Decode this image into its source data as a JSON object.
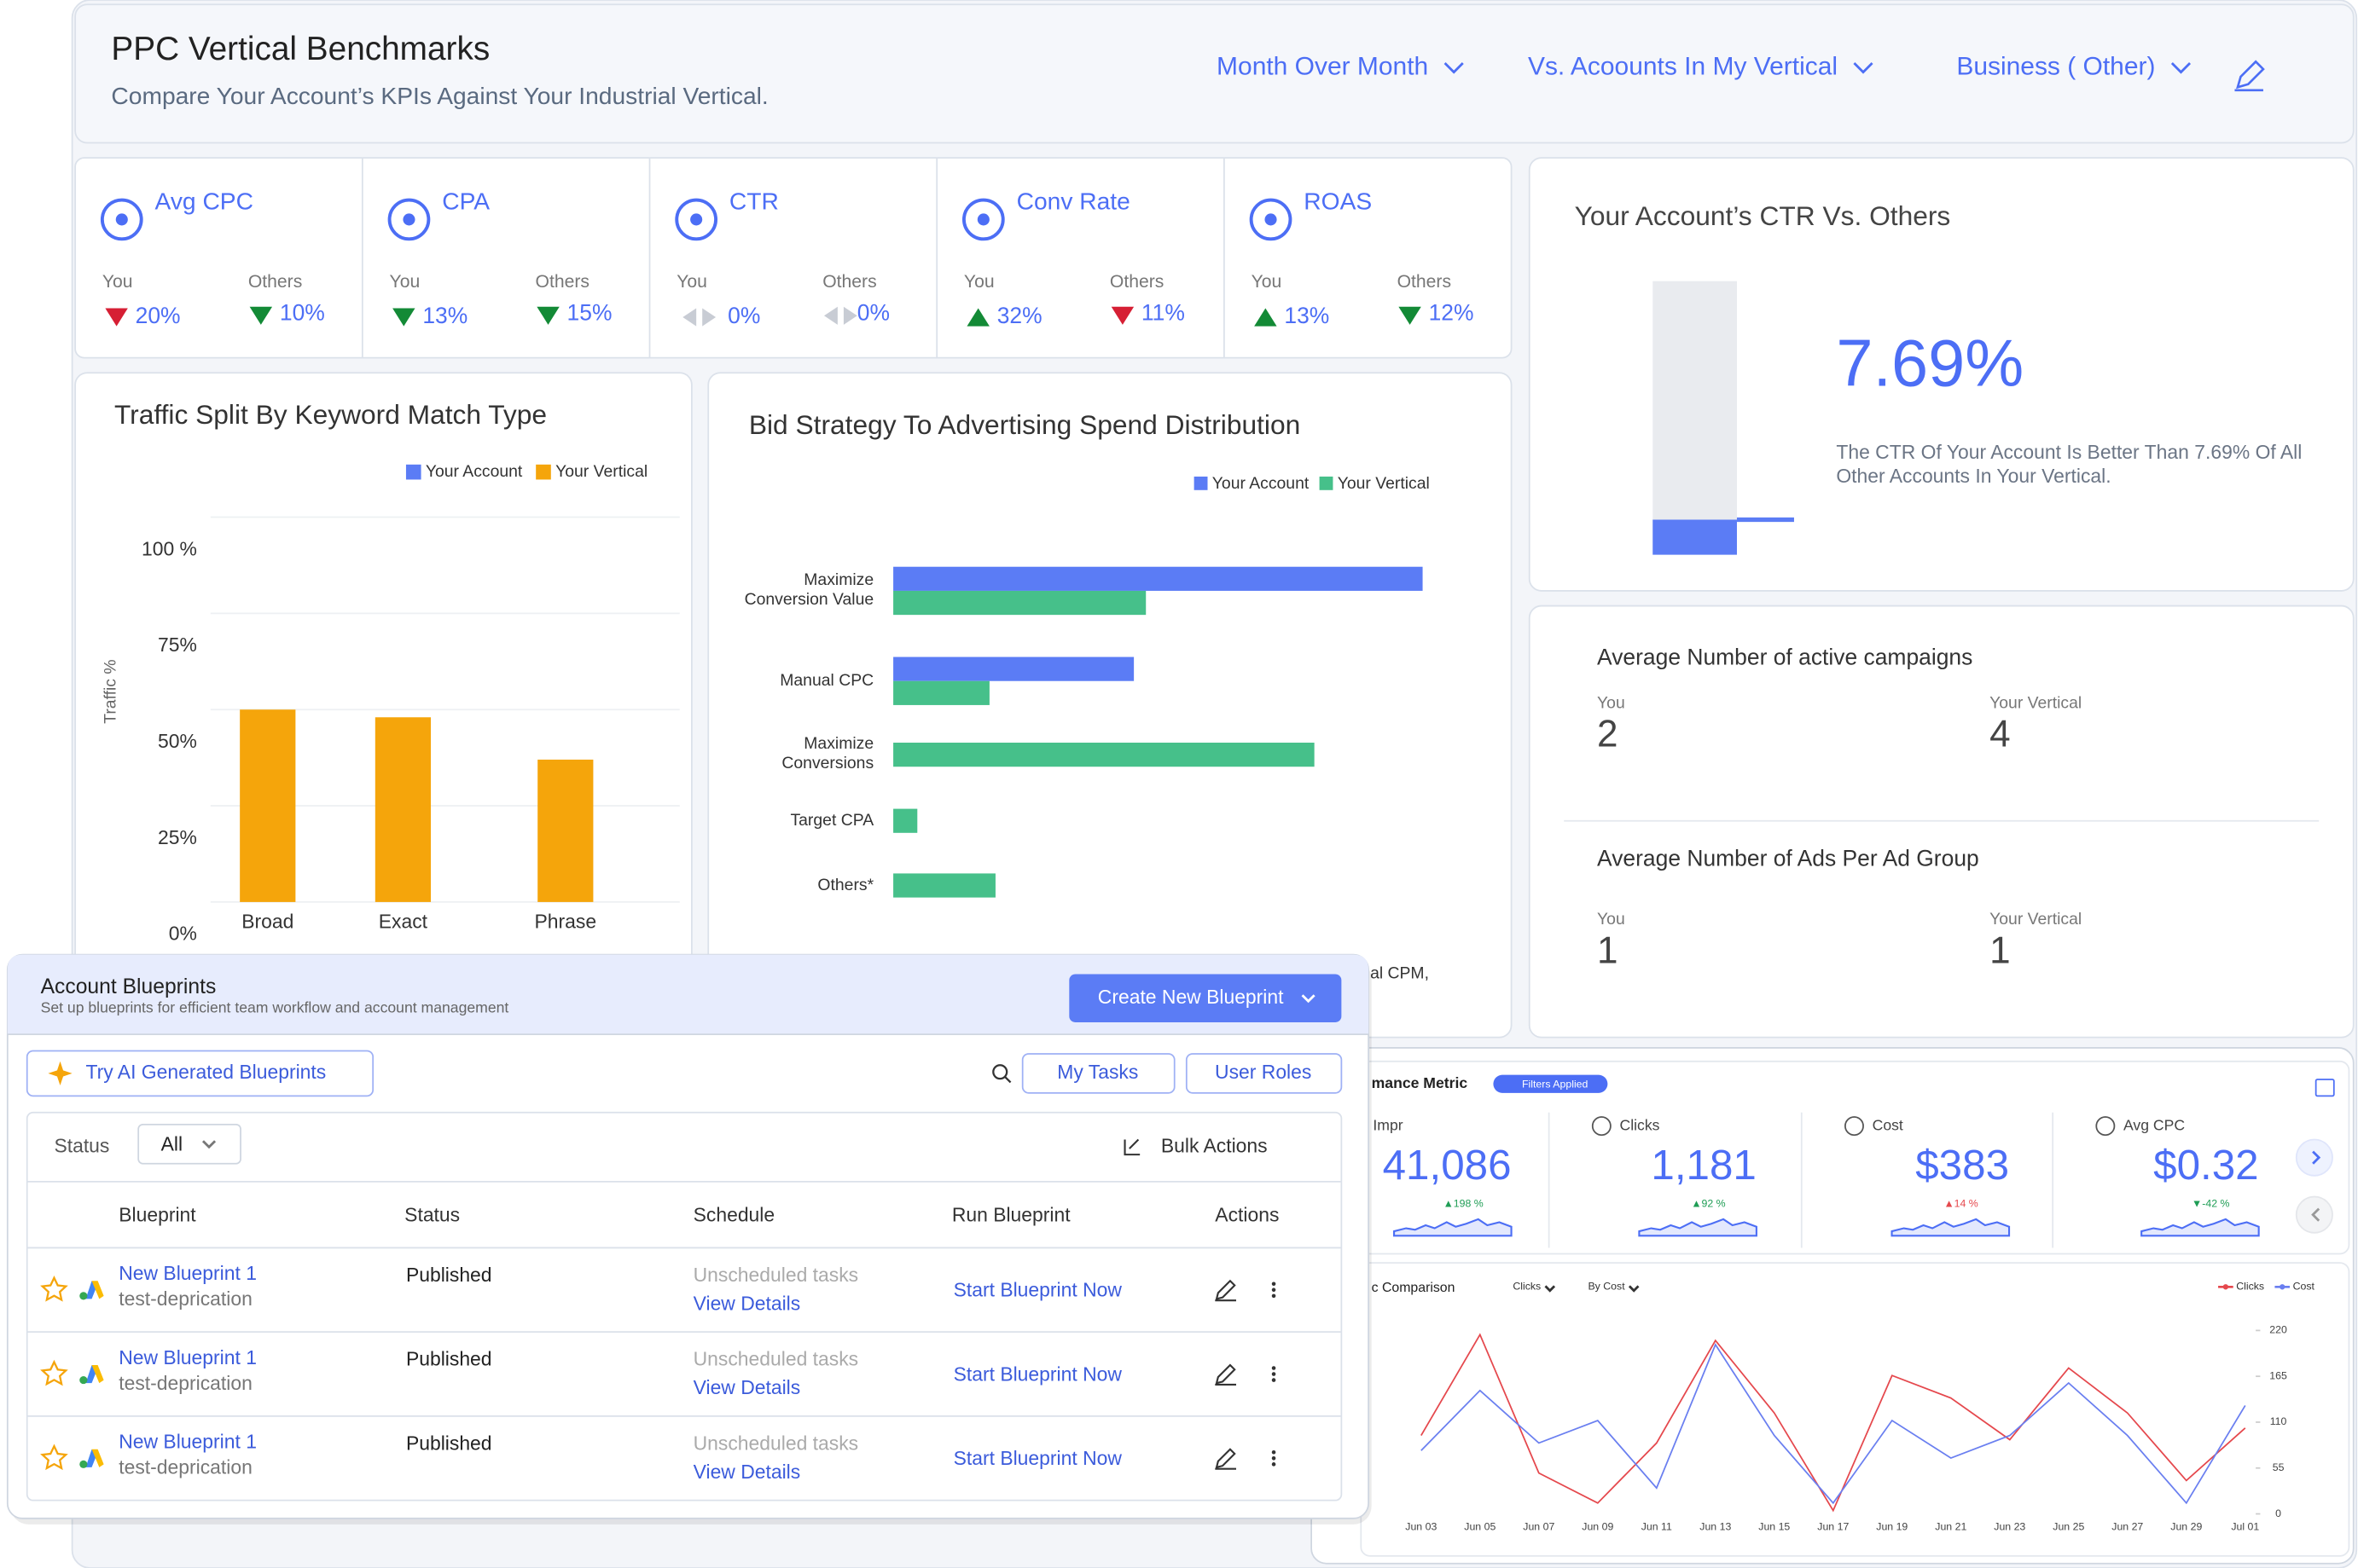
{
  "header": {
    "title": "PPC Vertical Benchmarks",
    "subtitle": "Compare Your Account’s KPIs Against Your Industrial Vertical.",
    "filters": [
      "Month Over Month",
      "Vs. Acoounts In My Vertical",
      "Business ( Other)"
    ]
  },
  "kpis": {
    "you_label": "You",
    "others_label": "Others",
    "items": [
      {
        "label": "Avg CPC",
        "you": "20%",
        "you_trend": "down",
        "you_color": "#d61f34",
        "others": "10%",
        "others_trend": "down",
        "others_color": "#138a36"
      },
      {
        "label": "CPA",
        "you": "13%",
        "you_trend": "down",
        "you_color": "#138a36",
        "others": "15%",
        "others_trend": "down",
        "others_color": "#138a36"
      },
      {
        "label": "CTR",
        "you": "0%",
        "you_trend": "flat",
        "you_color": "#c8ccd4",
        "others": "0%",
        "others_trend": "flat",
        "others_color": "#c8ccd4"
      },
      {
        "label": "Conv Rate",
        "you": "32%",
        "you_trend": "up",
        "you_color": "#138a36",
        "others": "11%",
        "others_trend": "down",
        "others_color": "#d61f34"
      },
      {
        "label": "ROAS",
        "you": "13%",
        "you_trend": "up",
        "you_color": "#138a36",
        "others": "12%",
        "others_trend": "down",
        "others_color": "#138a36"
      }
    ]
  },
  "traffic_chart": {
    "type": "bar",
    "title": "Traffic Split By Keyword Match Type",
    "y_label": "Traffic %",
    "categories": [
      "Broad",
      "Exact",
      "Phrase"
    ],
    "series": [
      {
        "name": "Your Account",
        "color": "#5b7cf5",
        "values": [
          null,
          null,
          null
        ]
      },
      {
        "name": "Your Vertical",
        "color": "#f5a50b",
        "values": [
          50,
          48,
          37
        ]
      }
    ],
    "ylim": [
      0,
      100
    ],
    "yticks": [
      {
        "value": 0,
        "label": "0%"
      },
      {
        "value": 25,
        "label": "25%"
      },
      {
        "value": 50,
        "label": "50%"
      },
      {
        "value": 75,
        "label": "75%"
      },
      {
        "value": 100,
        "label": "100 %"
      }
    ],
    "grid": true
  },
  "bid_chart": {
    "type": "hbar",
    "title": "Bid Strategy To Advertising Spend Distribution",
    "categories": [
      "Maximize Conversion Value",
      "Manual CPC",
      "Maximize Conversions",
      "Target CPA",
      "Others*"
    ],
    "series": [
      {
        "name": "Your Account",
        "color": "#5b7cf5",
        "values": [
          88,
          40,
          null,
          null,
          null
        ]
      },
      {
        "name": "Your Vertical",
        "color": "#46c08a",
        "values": [
          42,
          16,
          70,
          4,
          17
        ]
      }
    ],
    "xlim": [
      0,
      100
    ],
    "note": "ual CPM,"
  },
  "ctr_panel": {
    "title": "Your Account’s CTR Vs. Others",
    "value": 7.69,
    "value_label": "7.69%",
    "description": "The CTR Of Your Account Is Better Than 7.69% Of All Other Accounts In Your Vertical.",
    "ylim": [
      0,
      60
    ],
    "track_color": "#e9ebef",
    "color": "#5b7cf5"
  },
  "campaign_stats": {
    "you_label": "You",
    "vertical_label": "Your Vertical",
    "items": [
      {
        "title": "Average Number of active campaigns",
        "you": 2,
        "vertical": 4
      },
      {
        "title": "Average Number of Ads Per Ad Group",
        "you": 1,
        "vertical": 1
      }
    ]
  },
  "performance": {
    "title": "mance Metric",
    "badge": "Filters Applied",
    "metrics": [
      {
        "label": "Impr",
        "value": "41,086",
        "change": "▲198 %",
        "color": "#1f9d55"
      },
      {
        "label": "Clicks",
        "value": "1,181",
        "change": "▲92 %",
        "color": "#1f9d55"
      },
      {
        "label": "Cost",
        "value": "$383",
        "change": "▲14 %",
        "color": "#e5484d"
      },
      {
        "label": "Avg CPC",
        "value": "$0.32",
        "change": "▼-42 %",
        "color": "#1f9d55"
      }
    ]
  },
  "comparison_chart": {
    "type": "line",
    "title": "c Comparison",
    "controls": [
      "Clicks",
      "By Cost"
    ],
    "x": [
      "Jun 03",
      "Jun 05",
      "Jun 07",
      "Jun 09",
      "Jun 11",
      "Jun 13",
      "Jun 15",
      "Jun 17",
      "Jun 19",
      "Jun 21",
      "Jun 23",
      "Jun 25",
      "Jun 27",
      "Jun 29",
      "Jul 01"
    ],
    "series": [
      {
        "name": "Clicks",
        "color": "#e5484d",
        "values": [
          94,
          215,
          49,
          13,
          85,
          208,
          121,
          4,
          166,
          139,
          89,
          175,
          121,
          40,
          103
        ]
      },
      {
        "name": "Cost",
        "color": "#6a7ff0",
        "values": [
          76,
          148,
          85,
          112,
          31,
          203,
          94,
          13,
          112,
          67,
          94,
          157,
          94,
          13,
          130
        ]
      }
    ],
    "ylim": [
      0,
      220
    ],
    "yticks": [
      0,
      55,
      110,
      165,
      220
    ]
  },
  "blueprints": {
    "title": "Account Blueprints",
    "subtitle": "Set up blueprints for efficient team workflow and account management",
    "create_button": "Create New Blueprint",
    "ai_button": "Try AI Generated Blueprints",
    "tasks_button": "My Tasks",
    "roles_button": "User Roles",
    "status_label": "Status",
    "status_value": "All",
    "bulk_actions": "Bulk Actions",
    "columns": [
      "Blueprint",
      "Status",
      "Schedule",
      "Run Blueprint",
      "Actions"
    ],
    "rows": [
      {
        "name": "New Blueprint 1",
        "account": "test-deprication",
        "status": "Published",
        "schedule": "Unscheduled tasks",
        "schedule_link": "View Details",
        "run": "Start Blueprint Now"
      },
      {
        "name": "New Blueprint 1",
        "account": "test-deprication",
        "status": "Published",
        "schedule": "Unscheduled tasks",
        "schedule_link": "View Details",
        "run": "Start Blueprint Now"
      },
      {
        "name": "New Blueprint 1",
        "account": "test-deprication",
        "status": "Published",
        "schedule": "Unscheduled tasks",
        "schedule_link": "View Details",
        "run": "Start Blueprint Now"
      }
    ]
  }
}
